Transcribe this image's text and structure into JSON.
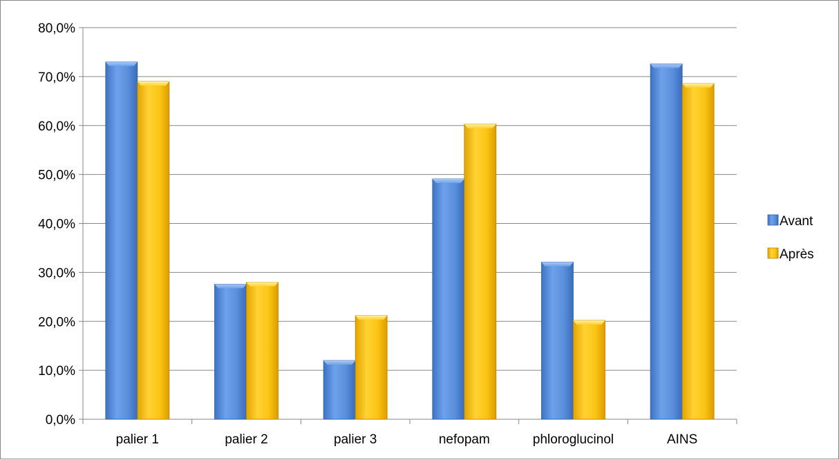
{
  "chart_data": {
    "type": "bar",
    "title": "",
    "xlabel": "",
    "ylabel": "",
    "categories": [
      "palier 1",
      "palier 2",
      "palier 3",
      "nefopam",
      "phloroglucinol",
      "AINS"
    ],
    "series": [
      {
        "name": "Avant",
        "color": "#4f86d6",
        "values": [
          73.0,
          27.6,
          12.0,
          49.1,
          32.1,
          72.6
        ]
      },
      {
        "name": "Après",
        "color": "#f2b705",
        "values": [
          69.0,
          28.0,
          21.2,
          60.3,
          20.2,
          68.6
        ]
      }
    ],
    "ylim": [
      0,
      80
    ],
    "yticks": [
      "0,0%",
      "10,0%",
      "20,0%",
      "30,0%",
      "40,0%",
      "50,0%",
      "60,0%",
      "70,0%",
      "80,0%"
    ],
    "grid": true,
    "legend_position": "right",
    "legend": [
      "Avant",
      "Après"
    ]
  }
}
